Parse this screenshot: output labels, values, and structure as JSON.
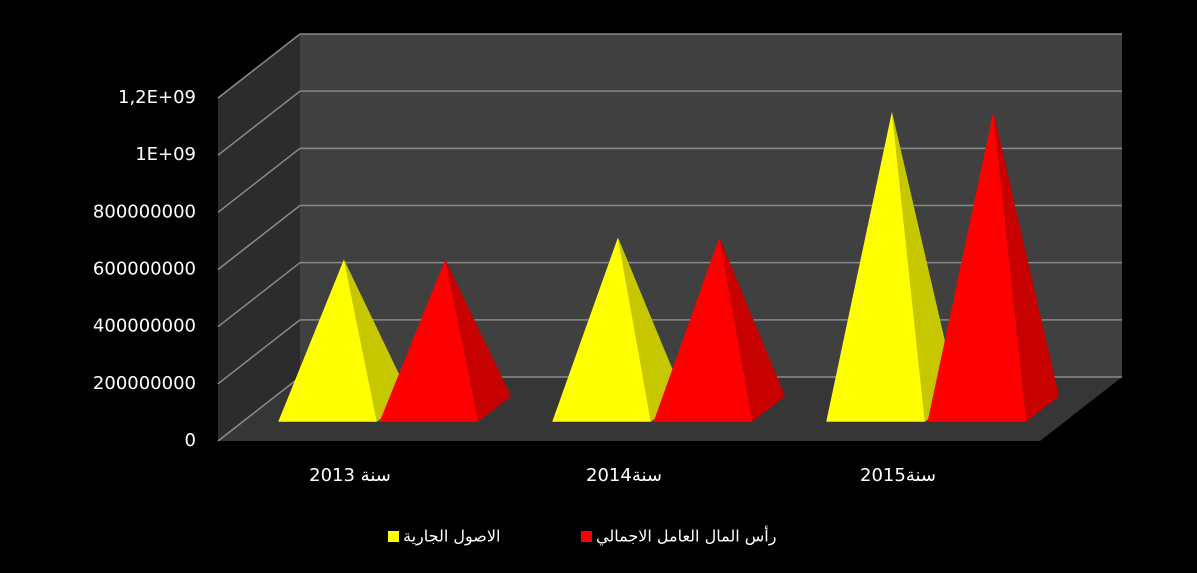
{
  "chart_data": {
    "type": "pyramid3d",
    "categories": [
      "2013 سنة",
      "سنة2014",
      "سنة2015"
    ],
    "series": [
      {
        "name": "الاصول الجارية",
        "color": "#ffff00",
        "values": [
          523000000,
          600000000,
          1040000000
        ]
      },
      {
        "name": "رأس المال العامل الاجمالي",
        "color": "#ff0000",
        "values": [
          523000000,
          600000000,
          1040000000
        ]
      }
    ],
    "ylim": [
      0,
      1200000000
    ],
    "yticks": [
      0,
      200000000,
      400000000,
      600000000,
      800000000,
      {
        "value": 1000000000,
        "label": "1E+09"
      },
      {
        "value": 1200000000,
        "label": "1,2E+09"
      }
    ],
    "grid": true,
    "legend": "bottom"
  }
}
